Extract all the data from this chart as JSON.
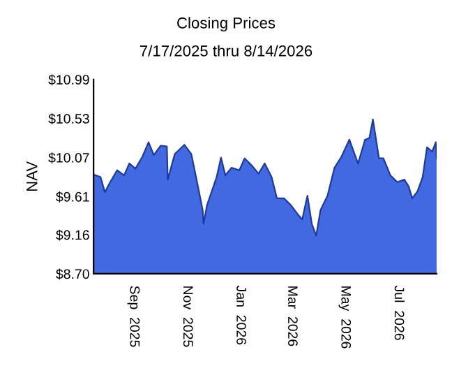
{
  "chart_data": {
    "type": "area",
    "title": "Closing Prices",
    "subtitle": "7/17/2025 thru 8/14/2026",
    "ylabel": "NAV",
    "x": [
      "2025-07-17",
      "2025-07-25",
      "2025-07-30",
      "2025-08-05",
      "2025-08-13",
      "2025-08-21",
      "2025-08-27",
      "2025-09-03",
      "2025-09-11",
      "2025-09-18",
      "2025-09-24",
      "2025-10-02",
      "2025-10-09",
      "2025-10-10",
      "2025-10-18",
      "2025-10-29",
      "2025-11-06",
      "2025-11-13",
      "2025-11-19",
      "2025-11-20",
      "2025-11-24",
      "2025-12-05",
      "2025-12-10",
      "2025-12-15",
      "2025-12-22",
      "2025-12-31",
      "2026-01-06",
      "2026-01-14",
      "2026-01-22",
      "2026-01-29",
      "2026-02-06",
      "2026-02-12",
      "2026-02-20",
      "2026-02-28",
      "2026-03-08",
      "2026-03-13",
      "2026-03-19",
      "2026-03-24",
      "2026-03-29",
      "2026-04-03",
      "2026-04-11",
      "2026-04-19",
      "2026-04-27",
      "2026-05-06",
      "2026-05-16",
      "2026-05-24",
      "2026-05-29",
      "2026-06-02",
      "2026-06-09",
      "2026-06-14",
      "2026-06-22",
      "2026-06-30",
      "2026-07-08",
      "2026-07-13",
      "2026-07-17",
      "2026-07-23",
      "2026-07-29",
      "2026-08-03",
      "2026-08-09",
      "2026-08-13",
      "2026-08-14"
    ],
    "series": [
      {
        "color": "#4169e1",
        "values": [
          9.87,
          9.84,
          9.66,
          9.78,
          9.92,
          9.86,
          10.0,
          9.94,
          10.08,
          10.25,
          10.1,
          10.21,
          10.2,
          9.81,
          10.11,
          10.22,
          10.11,
          9.76,
          9.45,
          9.29,
          9.51,
          9.84,
          10.07,
          9.86,
          9.95,
          9.92,
          10.06,
          9.98,
          9.88,
          10.0,
          9.84,
          9.59,
          9.59,
          9.51,
          9.4,
          9.34,
          9.62,
          9.29,
          9.15,
          9.45,
          9.62,
          9.95,
          10.08,
          10.28,
          10.0,
          10.28,
          10.3,
          10.52,
          10.06,
          10.06,
          9.86,
          9.78,
          9.81,
          9.73,
          9.59,
          9.67,
          9.84,
          10.19,
          10.14,
          10.25,
          10.06
        ]
      }
    ],
    "xlim": [
      "2025-07-17",
      "2026-08-14"
    ],
    "xticks": [
      {
        "value": "2025-09-01",
        "label": "Sep  2025"
      },
      {
        "value": "2025-11-01",
        "label": "Nov  2025"
      },
      {
        "value": "2026-01-01",
        "label": "Jan  2026"
      },
      {
        "value": "2026-03-01",
        "label": "Mar  2026"
      },
      {
        "value": "2026-05-01",
        "label": "May  2026"
      },
      {
        "value": "2026-07-01",
        "label": "Jul  2026"
      }
    ],
    "ylim": [
      8.7,
      10.99
    ],
    "yticks": [
      {
        "value": 8.7,
        "label": "$8.70"
      },
      {
        "value": 9.16,
        "label": "$9.16"
      },
      {
        "value": 9.61,
        "label": "$9.61"
      },
      {
        "value": 10.07,
        "label": "$10.07"
      },
      {
        "value": 10.53,
        "label": "$10.53"
      },
      {
        "value": 10.99,
        "label": "$10.99"
      }
    ],
    "grid": false
  }
}
